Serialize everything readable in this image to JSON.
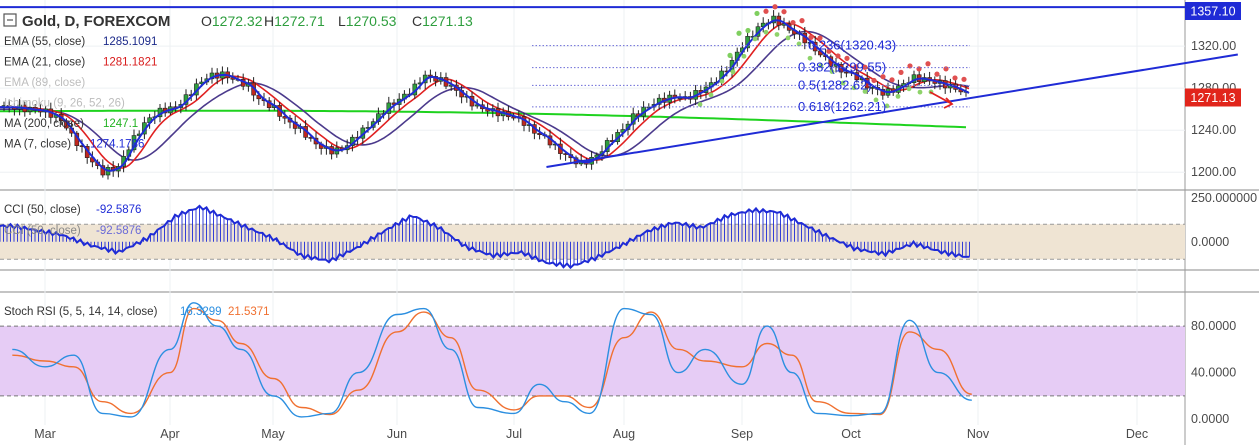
{
  "header": {
    "symbol": "Gold, D, FOREXCOM",
    "open_label": "O",
    "open": "1272.32",
    "high_label": "H",
    "high": "1272.71",
    "low_label": "L",
    "low": "1270.53",
    "close_label": "C",
    "close": "1271.13"
  },
  "indicators": [
    {
      "label": "EMA (55, close)",
      "value": "1285.1091",
      "color": "#1c2a8a",
      "faded": false
    },
    {
      "label": "EMA (21, close)",
      "value": "1281.1821",
      "color": "#d81b1b",
      "faded": false
    },
    {
      "label": "EMA (89, close)",
      "value": "",
      "color": "#9e9e9e",
      "faded": true
    },
    {
      "label": "Ichimoku (9, 26, 52, 26)",
      "value": "",
      "color": "#9e9e9e",
      "faded": true
    },
    {
      "label": "MA (200, close)",
      "value": "1247.1",
      "color": "#22b222",
      "faded": false
    },
    {
      "label": "MA (7, close)",
      "value": "1274.1786",
      "color": "#1f2bd6",
      "faded": false
    }
  ],
  "colors": {
    "up": "#2e9e3e",
    "down": "#c0281e",
    "ema55": "#4b3a8c",
    "ema21": "#e02020",
    "ma200": "#1ed21e",
    "ma7": "#1f2bd6",
    "trend": "#1f2bd6",
    "fib": "#6b6bd8",
    "cci": "#1f2bd6",
    "cci_band": "#efe4d3",
    "stoch_k": "#2c8fe0",
    "stoch_d": "#f07030",
    "stoch_band": "#e6ccf5",
    "price_tag": "#e1251b",
    "level_tag": "#1f2bd6",
    "ichimoku_dots": "#e05050"
  },
  "price_tags": {
    "current": "1271.13",
    "level": "1357.10"
  },
  "fib_labels": [
    "0.236(1320.43)",
    "0.382(1299.55)",
    "0.5(1282.62)",
    "0.618(1262.21)"
  ],
  "cci_legend": {
    "label1": "CCI (50, close)",
    "value1": "-92.5876",
    "label2": "CCI (50, close)",
    "value2": "-92.5876"
  },
  "stoch_legend": {
    "label": "Stoch RSI (5, 5, 14, 14, close)",
    "k": "16.3299",
    "d": "21.5371"
  },
  "x_axis": [
    "Mar",
    "Apr",
    "May",
    "Jun",
    "Jul",
    "Aug",
    "Sep",
    "Oct",
    "Nov",
    "Dec"
  ],
  "chart_data": [
    {
      "type": "candlestick",
      "title": "Gold, D, FOREXCOM",
      "y_ticks": [
        1200.0,
        1240.0,
        1280.0,
        1320.0
      ],
      "ylim": [
        1185,
        1362
      ],
      "horizontal_level": 1357.1,
      "last_price": 1271.13,
      "x_ticks": [
        "Mar",
        "Apr",
        "May",
        "Jun",
        "Jul",
        "Aug",
        "Sep",
        "Oct",
        "Nov",
        "Dec"
      ],
      "close_path": [
        [
          "Feb 22",
          1262
        ],
        [
          "Mar 1",
          1258
        ],
        [
          "Mar 5",
          1250
        ],
        [
          "Mar 8",
          1232
        ],
        [
          "Mar 12",
          1212
        ],
        [
          "Mar 15",
          1200
        ],
        [
          "Mar 19",
          1205
        ],
        [
          "Mar 22",
          1228
        ],
        [
          "Mar 26",
          1250
        ],
        [
          "Mar 29",
          1258
        ],
        [
          "Apr 3",
          1262
        ],
        [
          "Apr 6",
          1272
        ],
        [
          "Apr 10",
          1286
        ],
        [
          "Apr 13",
          1292
        ],
        [
          "Apr 17",
          1293
        ],
        [
          "Apr 20",
          1288
        ],
        [
          "Apr 24",
          1283
        ],
        [
          "Apr 27",
          1270
        ],
        [
          "May 1",
          1262
        ],
        [
          "May 4",
          1250
        ],
        [
          "May 8",
          1240
        ],
        [
          "May 11",
          1228
        ],
        [
          "May 15",
          1220
        ],
        [
          "May 18",
          1222
        ],
        [
          "May 22",
          1236
        ],
        [
          "May 25",
          1246
        ],
        [
          "May 29",
          1262
        ],
        [
          "Jun 1",
          1268
        ],
        [
          "Jun 5",
          1278
        ],
        [
          "Jun 8",
          1292
        ],
        [
          "Jun 12",
          1288
        ],
        [
          "Jun 15",
          1282
        ],
        [
          "Jun 19",
          1270
        ],
        [
          "Jun 22",
          1262
        ],
        [
          "Jun 26",
          1258
        ],
        [
          "Jun 29",
          1255
        ],
        [
          "Jul 3",
          1250
        ],
        [
          "Jul 6",
          1240
        ],
        [
          "Jul 10",
          1232
        ],
        [
          "Jul 13",
          1222
        ],
        [
          "Jul 17",
          1212
        ],
        [
          "Jul 20",
          1208
        ],
        [
          "Jul 24",
          1216
        ],
        [
          "Jul 27",
          1228
        ],
        [
          "Jul 31",
          1240
        ],
        [
          "Aug 3",
          1252
        ],
        [
          "Aug 7",
          1262
        ],
        [
          "Aug 10",
          1268
        ],
        [
          "Aug 14",
          1272
        ],
        [
          "Aug 17",
          1270
        ],
        [
          "Aug 21",
          1278
        ],
        [
          "Aug 24",
          1285
        ],
        [
          "Aug 28",
          1300
        ],
        [
          "Aug 31",
          1318
        ],
        [
          "Sep 4",
          1332
        ],
        [
          "Sep 7",
          1342
        ],
        [
          "Sep 10",
          1346
        ],
        [
          "Sep 14",
          1336
        ],
        [
          "Sep 18",
          1328
        ],
        [
          "Sep 21",
          1318
        ],
        [
          "Sep 25",
          1306
        ],
        [
          "Sep 28",
          1298
        ],
        [
          "Oct 2",
          1292
        ],
        [
          "Oct 5",
          1282
        ],
        [
          "Oct 9",
          1275
        ],
        [
          "Oct 12",
          1280
        ],
        [
          "Oct 16",
          1290
        ],
        [
          "Oct 19",
          1288
        ],
        [
          "Oct 23",
          1284
        ],
        [
          "Oct 26",
          1280
        ],
        [
          "Oct 29",
          1274
        ],
        [
          "Oct 30",
          1271
        ]
      ],
      "series": [
        {
          "name": "EMA (55, close)",
          "last": 1285.1091
        },
        {
          "name": "EMA (21, close)",
          "last": 1281.1821
        },
        {
          "name": "MA (200, close)",
          "last": 1247.1
        },
        {
          "name": "MA (7, close)",
          "last": 1274.1786
        }
      ],
      "fibonacci": [
        {
          "ratio": 0.236,
          "price": 1320.43
        },
        {
          "ratio": 0.382,
          "price": 1299.55
        },
        {
          "ratio": 0.5,
          "price": 1282.62
        },
        {
          "ratio": 0.618,
          "price": 1262.21
        }
      ],
      "trendline": [
        [
          "Jul 10",
          1205
        ],
        [
          "Dec 26",
          1312
        ]
      ]
    },
    {
      "type": "line",
      "title": "CCI (50, close)",
      "y_ticks": [
        250.0,
        0.0
      ],
      "ylim": [
        -150,
        250
      ],
      "band": [
        -100,
        100
      ],
      "last": -92.5876,
      "x": [
        "Feb 22",
        "Mar 5",
        "Mar 12",
        "Mar 19",
        "Mar 26",
        "Apr 3",
        "Apr 10",
        "Apr 17",
        "Apr 24",
        "May 1",
        "May 8",
        "May 15",
        "May 22",
        "May 29",
        "Jun 5",
        "Jun 12",
        "Jun 19",
        "Jun 26",
        "Jul 3",
        "Jul 10",
        "Jul 17",
        "Jul 24",
        "Jul 31",
        "Aug 7",
        "Aug 14",
        "Aug 21",
        "Aug 28",
        "Sep 4",
        "Sep 11",
        "Sep 18",
        "Sep 25",
        "Oct 2",
        "Oct 9",
        "Oct 16",
        "Oct 23",
        "Oct 30"
      ],
      "values": [
        90,
        40,
        -20,
        -60,
        20,
        150,
        200,
        140,
        80,
        20,
        -80,
        -110,
        -30,
        70,
        150,
        80,
        -30,
        -80,
        -60,
        -120,
        -140,
        -90,
        -20,
        60,
        110,
        80,
        150,
        180,
        170,
        100,
        30,
        -40,
        -70,
        -10,
        -60,
        -92.6
      ]
    },
    {
      "type": "line",
      "title": "Stoch RSI (5, 5, 14, 14, close)",
      "y_ticks": [
        80.0,
        40.0,
        0.0
      ],
      "ylim": [
        -5,
        105
      ],
      "band": [
        20,
        80
      ],
      "x": [
        "Feb 22",
        "Mar 1",
        "Mar 8",
        "Mar 15",
        "Mar 22",
        "Apr 1",
        "Apr 8",
        "Apr 15",
        "Apr 22",
        "May 1",
        "May 8",
        "May 15",
        "May 22",
        "Jun 1",
        "Jun 8",
        "Jun 15",
        "Jun 22",
        "Jul 1",
        "Jul 8",
        "Jul 15",
        "Jul 22",
        "Aug 1",
        "Aug 8",
        "Aug 15",
        "Aug 22",
        "Sep 1",
        "Sep 8",
        "Sep 15",
        "Sep 22",
        "Oct 1",
        "Oct 8",
        "Oct 15",
        "Oct 22",
        "Oct 30"
      ],
      "series": [
        {
          "name": "16.3299",
          "values": [
            60,
            45,
            55,
            5,
            2,
            60,
            100,
            80,
            60,
            20,
            2,
            5,
            40,
            90,
            95,
            60,
            10,
            5,
            30,
            15,
            5,
            95,
            90,
            40,
            60,
            30,
            80,
            40,
            5,
            3,
            5,
            85,
            40,
            16.3
          ]
        },
        {
          "name": "21.5371",
          "values": [
            55,
            50,
            45,
            15,
            5,
            40,
            95,
            85,
            65,
            35,
            10,
            4,
            25,
            75,
            92,
            70,
            25,
            8,
            20,
            20,
            10,
            70,
            92,
            60,
            50,
            45,
            65,
            55,
            15,
            5,
            4,
            75,
            60,
            21.5
          ]
        }
      ]
    }
  ]
}
